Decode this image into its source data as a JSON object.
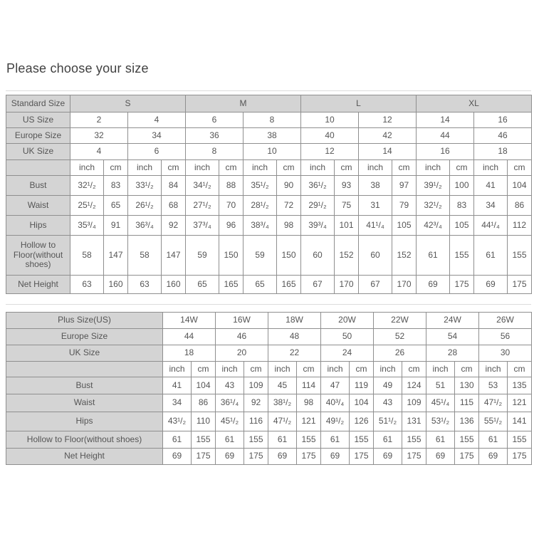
{
  "page": {
    "title": "Please choose your size"
  },
  "colors": {
    "header_bg": "#d4d4d4",
    "border": "#8f8f8f",
    "text": "#555555",
    "title": "#414141"
  },
  "tables": [
    {
      "name": "standard-size-chart",
      "corner_label": "Standard Size",
      "group_headers": [
        "S",
        "M",
        "L",
        "XL"
      ],
      "size_rows": [
        {
          "label": "US Size",
          "values": [
            "2",
            "4",
            "6",
            "8",
            "10",
            "12",
            "14",
            "16"
          ]
        },
        {
          "label": "Europe Size",
          "values": [
            "32",
            "34",
            "36",
            "38",
            "40",
            "42",
            "44",
            "46"
          ]
        },
        {
          "label": "UK Size",
          "values": [
            "4",
            "6",
            "8",
            "10",
            "12",
            "14",
            "16",
            "18"
          ]
        }
      ],
      "unit_labels": [
        "inch",
        "cm"
      ],
      "measure_rows": [
        {
          "label": "Bust",
          "values": [
            "32¹/₂",
            "83",
            "33¹/₂",
            "84",
            "34¹/₂",
            "88",
            "35¹/₂",
            "90",
            "36¹/₂",
            "93",
            "38",
            "97",
            "39¹/₂",
            "100",
            "41",
            "104"
          ]
        },
        {
          "label": "Waist",
          "values": [
            "25¹/₂",
            "65",
            "26¹/₂",
            "68",
            "27¹/₂",
            "70",
            "28¹/₂",
            "72",
            "29¹/₂",
            "75",
            "31",
            "79",
            "32¹/₂",
            "83",
            "34",
            "86"
          ]
        },
        {
          "label": "Hips",
          "values": [
            "35³/₄",
            "91",
            "36³/₄",
            "92",
            "37³/₄",
            "96",
            "38³/₄",
            "98",
            "39³/₄",
            "101",
            "41¹/₄",
            "105",
            "42³/₄",
            "105",
            "44¹/₄",
            "112"
          ]
        },
        {
          "label": "Hollow to Floor(without shoes)",
          "values": [
            "58",
            "147",
            "58",
            "147",
            "59",
            "150",
            "59",
            "150",
            "60",
            "152",
            "60",
            "152",
            "61",
            "155",
            "61",
            "155"
          ]
        },
        {
          "label": "Net Height",
          "values": [
            "63",
            "160",
            "63",
            "160",
            "65",
            "165",
            "65",
            "165",
            "67",
            "170",
            "67",
            "170",
            "69",
            "175",
            "69",
            "175"
          ]
        }
      ]
    },
    {
      "name": "plus-size-chart",
      "size_rows": [
        {
          "label": "Plus Size(US)",
          "values": [
            "14W",
            "16W",
            "18W",
            "20W",
            "22W",
            "24W",
            "26W"
          ]
        },
        {
          "label": "Europe Size",
          "values": [
            "44",
            "46",
            "48",
            "50",
            "52",
            "54",
            "56"
          ]
        },
        {
          "label": "UK Size",
          "values": [
            "18",
            "20",
            "22",
            "24",
            "26",
            "28",
            "30"
          ]
        }
      ],
      "unit_labels": [
        "inch",
        "cm"
      ],
      "measure_rows": [
        {
          "label": "Bust",
          "values": [
            "41",
            "104",
            "43",
            "109",
            "45",
            "114",
            "47",
            "119",
            "49",
            "124",
            "51",
            "130",
            "53",
            "135"
          ]
        },
        {
          "label": "Waist",
          "values": [
            "34",
            "86",
            "36¹/₄",
            "92",
            "38¹/₂",
            "98",
            "40³/₄",
            "104",
            "43",
            "109",
            "45¹/₄",
            "115",
            "47¹/₂",
            "121"
          ]
        },
        {
          "label": "Hips",
          "values": [
            "43¹/₂",
            "110",
            "45¹/₂",
            "116",
            "47¹/₂",
            "121",
            "49¹/₂",
            "126",
            "51¹/₂",
            "131",
            "53¹/₂",
            "136",
            "55¹/₂",
            "141"
          ]
        },
        {
          "label": "Hollow to Floor(without shoes)",
          "values": [
            "61",
            "155",
            "61",
            "155",
            "61",
            "155",
            "61",
            "155",
            "61",
            "155",
            "61",
            "155",
            "61",
            "155"
          ]
        },
        {
          "label": "Net Height",
          "values": [
            "69",
            "175",
            "69",
            "175",
            "69",
            "175",
            "69",
            "175",
            "69",
            "175",
            "69",
            "175",
            "69",
            "175"
          ]
        }
      ]
    }
  ]
}
